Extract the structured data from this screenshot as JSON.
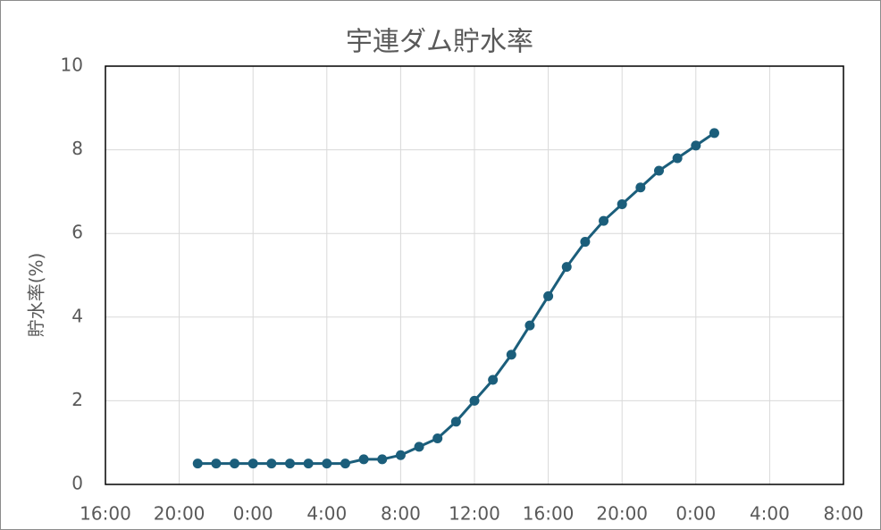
{
  "chart_data": {
    "type": "line",
    "title": "宇連ダム貯水率",
    "y_label": "貯水率(%)",
    "x": [
      21,
      22,
      23,
      24,
      25,
      26,
      27,
      28,
      29,
      30,
      31,
      32,
      33,
      34,
      35,
      36,
      37,
      38,
      39,
      40,
      41,
      42,
      43,
      44,
      45,
      46,
      47,
      48,
      49
    ],
    "series": [
      {
        "name": "貯水率",
        "color": "#1b5e7b",
        "values": [
          0.5,
          0.5,
          0.5,
          0.5,
          0.5,
          0.5,
          0.5,
          0.5,
          0.5,
          0.6,
          0.6,
          0.7,
          0.9,
          1.1,
          1.5,
          2.0,
          2.5,
          3.1,
          3.8,
          4.5,
          5.2,
          5.8,
          6.3,
          6.7,
          7.1,
          7.5,
          7.8,
          8.1,
          8.4
        ]
      }
    ],
    "xlim": [
      16,
      56
    ],
    "xticks": [
      {
        "value": 16,
        "label": "16:00"
      },
      {
        "value": 20,
        "label": "20:00"
      },
      {
        "value": 24,
        "label": "0:00"
      },
      {
        "value": 28,
        "label": "4:00"
      },
      {
        "value": 32,
        "label": "8:00"
      },
      {
        "value": 36,
        "label": "12:00"
      },
      {
        "value": 40,
        "label": "16:00"
      },
      {
        "value": 44,
        "label": "20:00"
      },
      {
        "value": 48,
        "label": "0:00"
      },
      {
        "value": 52,
        "label": "4:00"
      },
      {
        "value": 56,
        "label": "8:00"
      }
    ],
    "ylim": [
      0,
      10
    ],
    "yticks": [
      0,
      2,
      4,
      6,
      8,
      10
    ],
    "grid": true
  }
}
